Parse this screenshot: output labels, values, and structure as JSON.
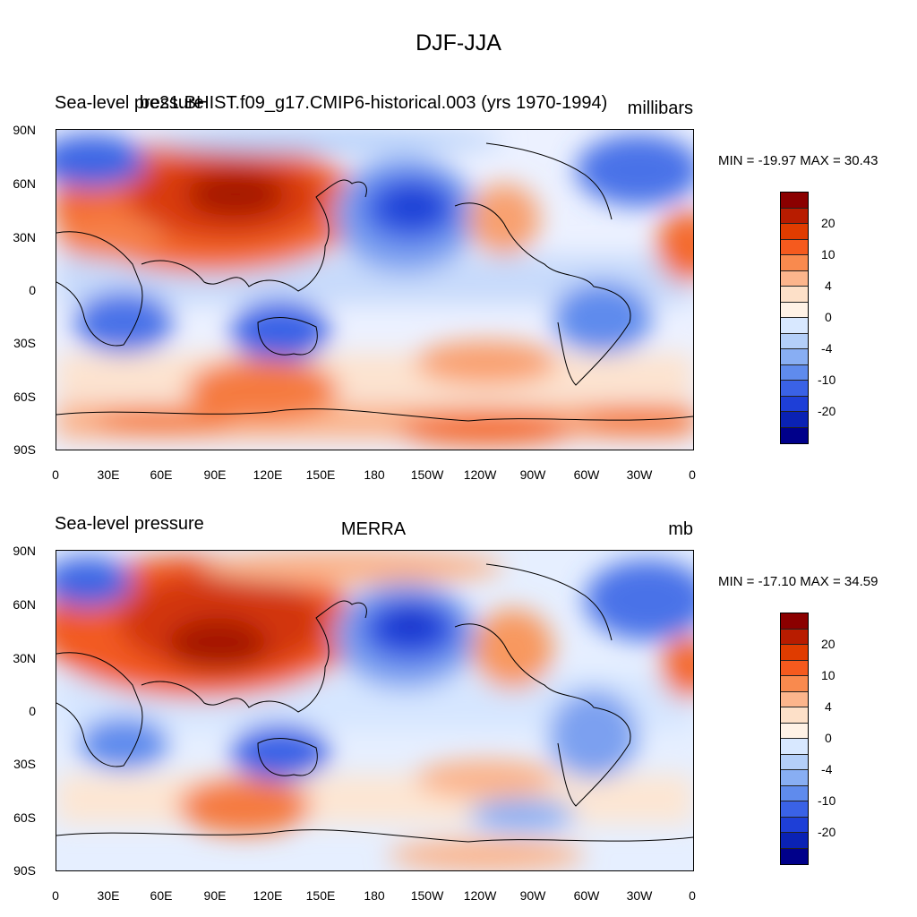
{
  "main_title": "DJF-JJA",
  "panels": [
    {
      "left_title": "Sea-level pressure",
      "center_title": "be21.BHIST.f09_g17.CMIP6-historical.003 (yrs 1970-1994)",
      "units": "millibars",
      "stats": "MIN = -19.97 MAX =  30.43"
    },
    {
      "left_title": "Sea-level pressure",
      "center_title": "MERRA",
      "units": "mb",
      "stats": "MIN = -17.10 MAX =  34.59"
    }
  ],
  "lat_labels": [
    "90N",
    "60N",
    "30N",
    "0",
    "30S",
    "60S",
    "90S"
  ],
  "lon_labels": [
    "0",
    "30E",
    "60E",
    "90E",
    "120E",
    "150E",
    "180",
    "150W",
    "120W",
    "90W",
    "60W",
    "30W",
    "0"
  ],
  "colorbar": {
    "labels": [
      "20",
      "10",
      "4",
      "0",
      "-4",
      "-10",
      "-20"
    ],
    "colors": [
      "#8b0000",
      "#b81c00",
      "#e03c00",
      "#f55a1e",
      "#f98a4e",
      "#fcb58c",
      "#fde0c8",
      "#fff2e6",
      "#d8e8ff",
      "#b4cff9",
      "#88aef3",
      "#5f8bed",
      "#3a62e6",
      "#1e3fd7",
      "#0a22b4",
      "#00008a"
    ]
  }
}
